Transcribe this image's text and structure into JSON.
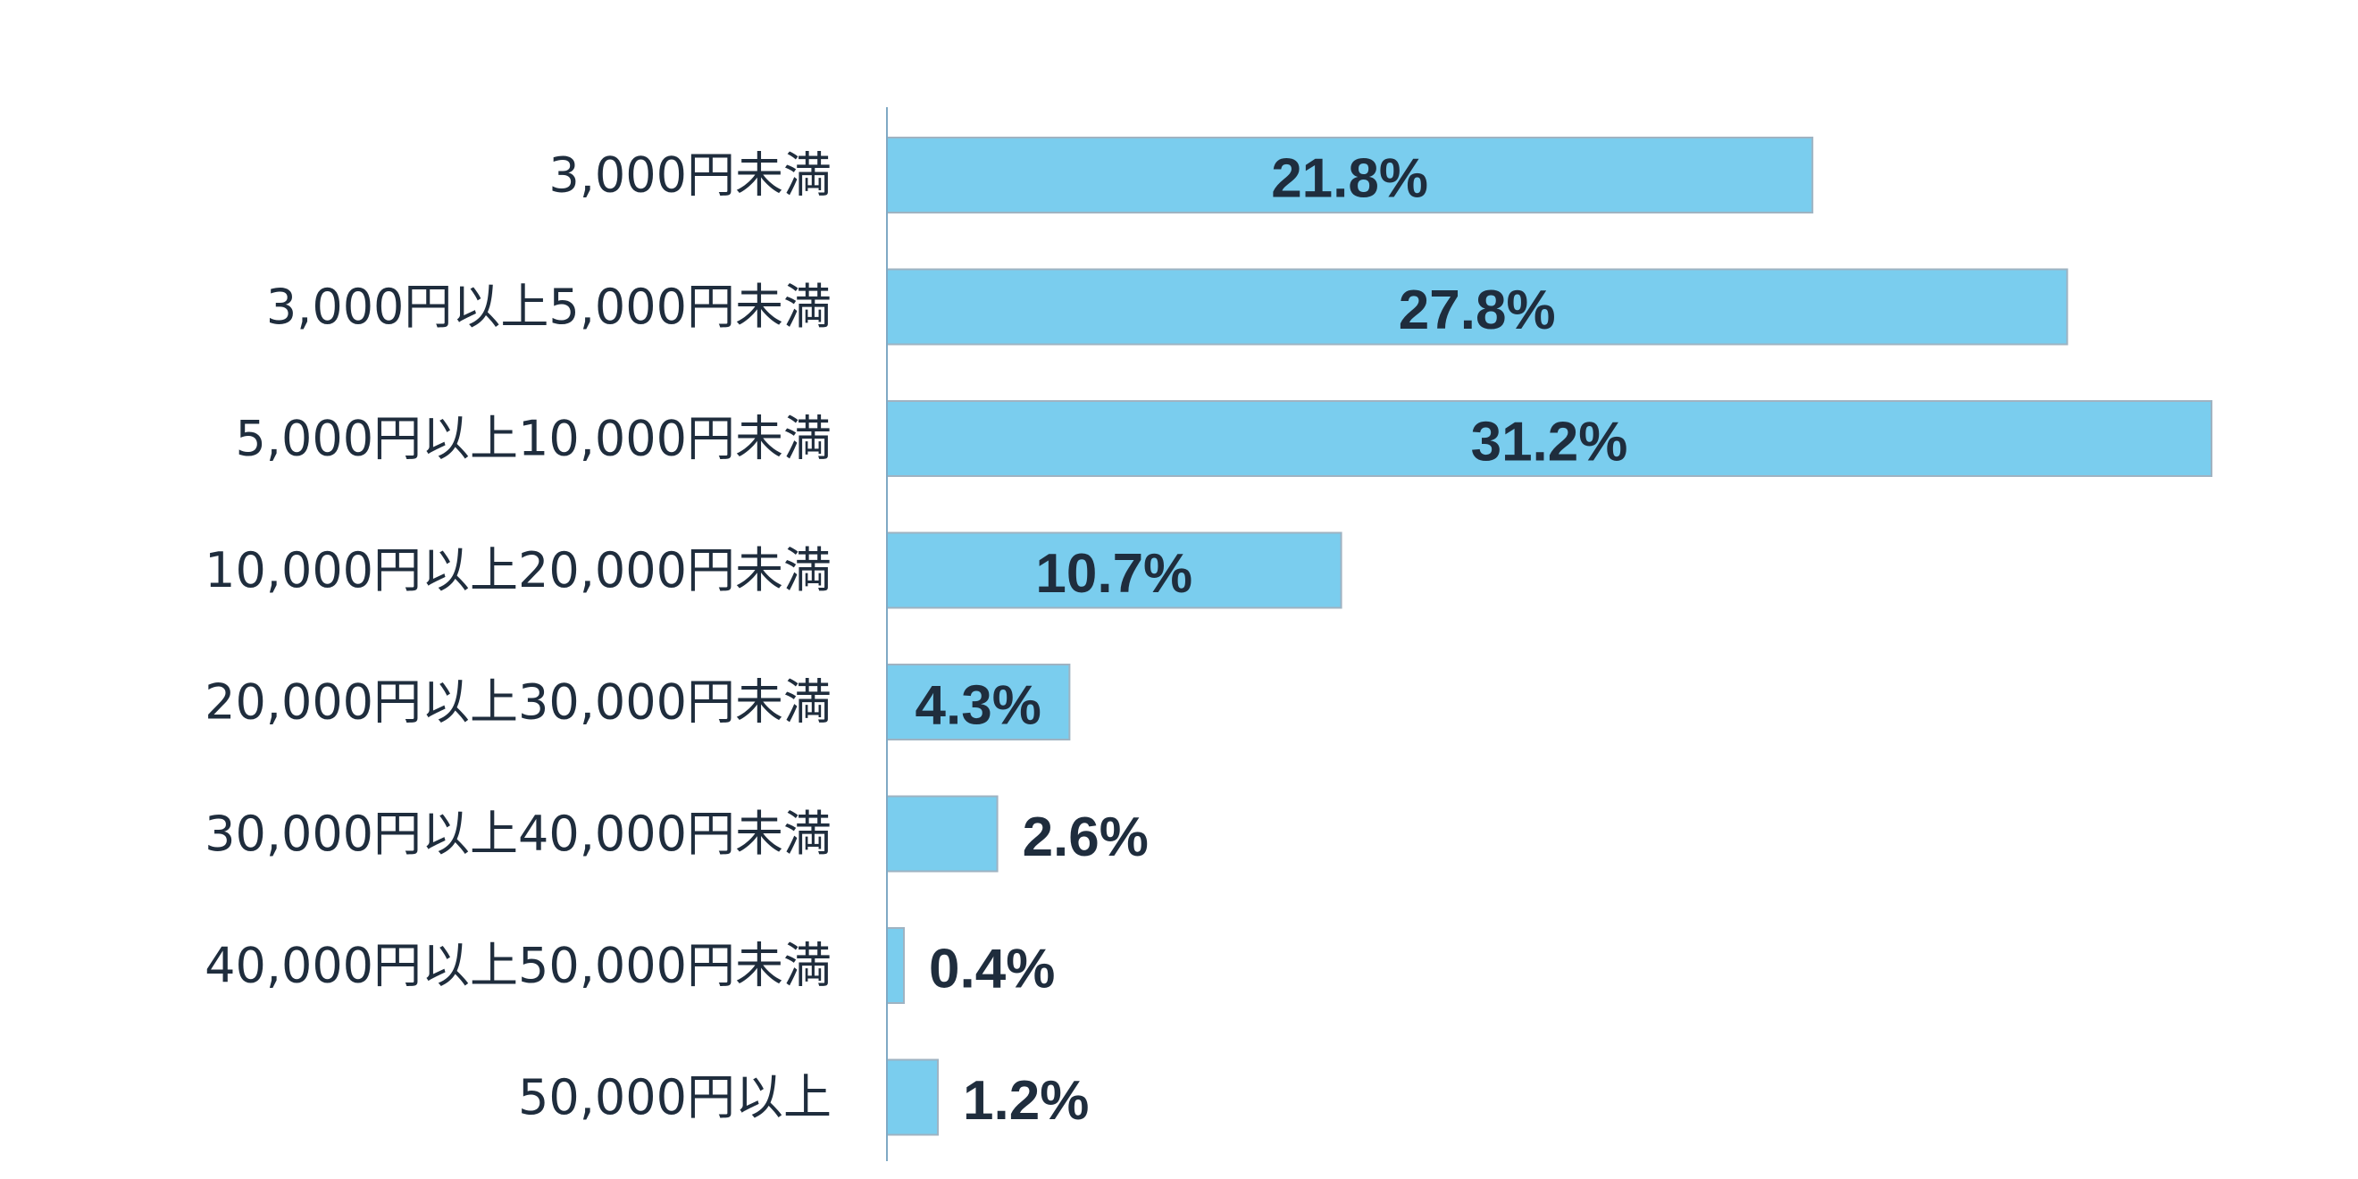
{
  "chart_data": {
    "type": "bar",
    "orientation": "horizontal",
    "categories": [
      "3,000円未満",
      "3,000円以上5,000円未満",
      "5,000円以上10,000円未満",
      "10,000円以上20,000円未満",
      "20,000円以上30,000円未満",
      "30,000円以上40,000円未満",
      "40,000円以上50,000円未満",
      "50,000円以上"
    ],
    "values": [
      21.8,
      27.8,
      31.2,
      10.7,
      4.3,
      2.6,
      0.4,
      1.2
    ],
    "value_labels": [
      "21.8%",
      "27.8%",
      "31.2%",
      "10.7%",
      "4.3%",
      "2.6%",
      "0.4%",
      "1.2%"
    ],
    "unit": "%",
    "xlim": [
      0,
      32
    ],
    "grid": false,
    "legend": "none",
    "bar_color": "#7acdee",
    "bar_border_color": "#9fb3c2",
    "axis_color": "#7fa9c4",
    "label_color": "#1f2d3d"
  }
}
